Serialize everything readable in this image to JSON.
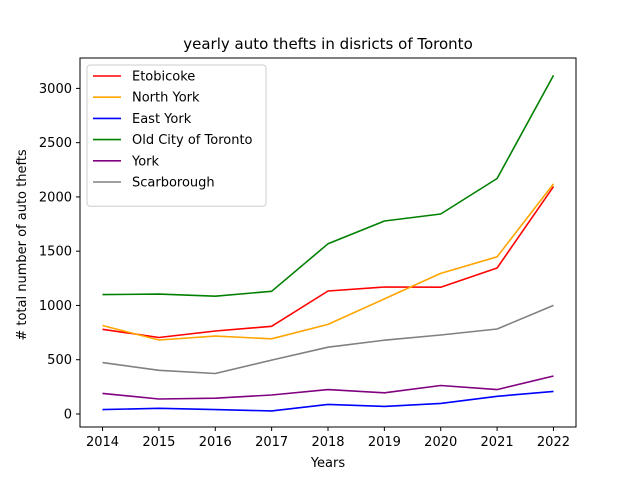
{
  "chart_data": {
    "type": "line",
    "title": "yearly auto thefts in disricts of Toronto",
    "xlabel": "Years",
    "ylabel": "# total number of auto thefts",
    "x": [
      2014,
      2015,
      2016,
      2017,
      2018,
      2019,
      2020,
      2021,
      2022
    ],
    "xlim": [
      2013.6,
      2022.4
    ],
    "ylim": [
      -120,
      3280
    ],
    "yticks": [
      0,
      500,
      1000,
      1500,
      2000,
      2500,
      3000
    ],
    "grid": false,
    "legend_position": "top-left",
    "series": [
      {
        "name": "Etobicoke",
        "color": "#ff0000",
        "values": [
          780,
          705,
          765,
          808,
          1133,
          1170,
          1168,
          1345,
          2095
        ]
      },
      {
        "name": "North York",
        "color": "#ffa500",
        "values": [
          815,
          682,
          718,
          693,
          825,
          1060,
          1295,
          1448,
          2120
        ]
      },
      {
        "name": "East York",
        "color": "#0000ff",
        "values": [
          40,
          52,
          40,
          28,
          88,
          70,
          97,
          163,
          208
        ]
      },
      {
        "name": "Old City of Toronto",
        "color": "#008000",
        "values": [
          1100,
          1105,
          1085,
          1130,
          1568,
          1778,
          1843,
          2170,
          3120
        ]
      },
      {
        "name": "York",
        "color": "#800080",
        "values": [
          190,
          138,
          145,
          175,
          225,
          195,
          262,
          225,
          350
        ]
      },
      {
        "name": "Scarborough",
        "color": "#808080",
        "values": [
          473,
          402,
          373,
          496,
          615,
          680,
          728,
          783,
          1000
        ]
      }
    ]
  }
}
